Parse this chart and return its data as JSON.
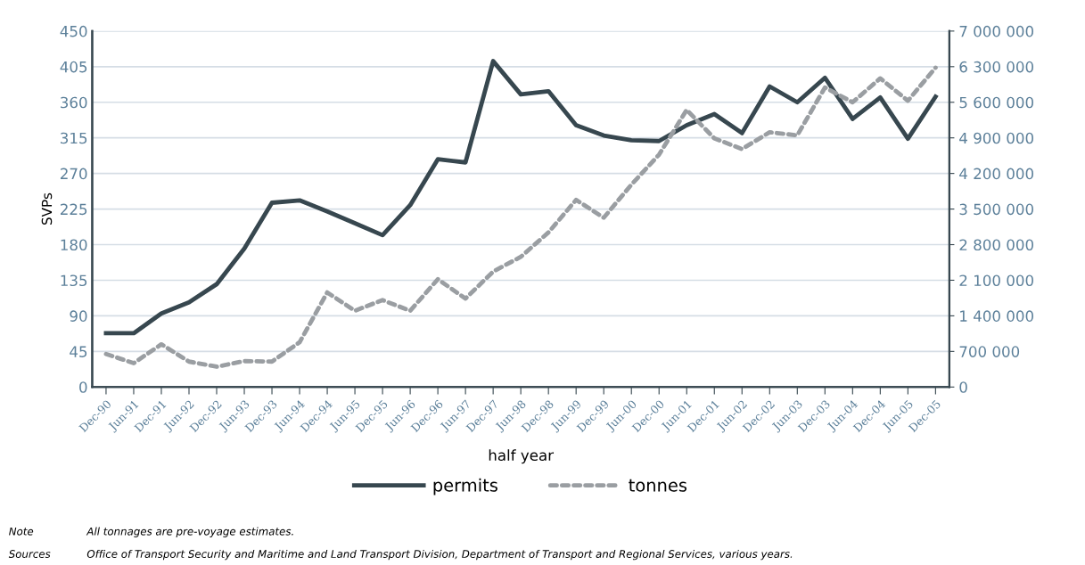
{
  "chart_data": {
    "type": "line",
    "xlabel": "half year",
    "ylabel": "SVPs",
    "categories": [
      "Dec-90",
      "Jun-91",
      "Dec-91",
      "Jun-92",
      "Dec-92",
      "Jun-93",
      "Dec-93",
      "Jun-94",
      "Dec-94",
      "Jun-95",
      "Dec-95",
      "Jun-96",
      "Dec-96",
      "Jun-97",
      "Dec-97",
      "Jun-98",
      "Dec-98",
      "Jun-99",
      "Dec-99",
      "Jun-00",
      "Dec-00",
      "Jun-01",
      "Dec-01",
      "Jun-02",
      "Dec-02",
      "Jun-03",
      "Dec-03",
      "Jun-04",
      "Dec-04",
      "Jun-05",
      "Dec-05"
    ],
    "series": [
      {
        "name": "permits",
        "color": "#37474f",
        "line_style": "solid",
        "values": [
          68,
          68,
          93,
          107,
          130,
          175,
          233,
          236,
          222,
          207,
          192,
          230,
          288,
          284,
          412,
          370,
          374,
          331,
          318,
          312,
          311,
          331,
          345,
          321,
          380,
          360,
          391,
          339,
          366,
          314,
          367
        ]
      },
      {
        "name": "tonnes",
        "color": "#9a9ea2",
        "line_style": "dashed",
        "axis": "y2",
        "values": [
          650000,
          470000,
          840000,
          500000,
          400000,
          510000,
          500000,
          880000,
          1860000,
          1500000,
          1710000,
          1500000,
          2120000,
          1740000,
          2270000,
          2560000,
          3040000,
          3680000,
          3330000,
          3980000,
          4570000,
          5450000,
          4890000,
          4680000,
          5010000,
          4950000,
          5890000,
          5600000,
          6070000,
          5630000,
          6280000
        ]
      }
    ],
    "ylim": [
      0,
      450
    ],
    "yticks": [
      0,
      45,
      90,
      135,
      180,
      225,
      270,
      315,
      360,
      405,
      450
    ],
    "y2lim": [
      0,
      7000000
    ],
    "y2ticks": [
      0,
      {
        "value": 700000,
        "label": "700 000"
      },
      {
        "value": 1400000,
        "label": "1 400 000"
      },
      {
        "value": 2100000,
        "label": "2 100 000"
      },
      {
        "value": 2800000,
        "label": "2 800 000"
      },
      {
        "value": 3500000,
        "label": "3 500 000"
      },
      {
        "value": 4200000,
        "label": "4 200 000"
      },
      {
        "value": 4900000,
        "label": "4 900 000"
      },
      {
        "value": 5600000,
        "label": "5 600 000"
      },
      {
        "value": 6300000,
        "label": "6 300 000"
      },
      {
        "value": 7000000,
        "label": "7 000 000"
      }
    ],
    "grid": "y",
    "legend": "bottom",
    "marker": "none",
    "annotations": [
      "Note",
      "All tonnages are pre-voyage estimates.",
      "Sources",
      "Office of Transport Security and Maritime and Land Transport Division, Department of Transport and Regional Services, various years."
    ]
  }
}
